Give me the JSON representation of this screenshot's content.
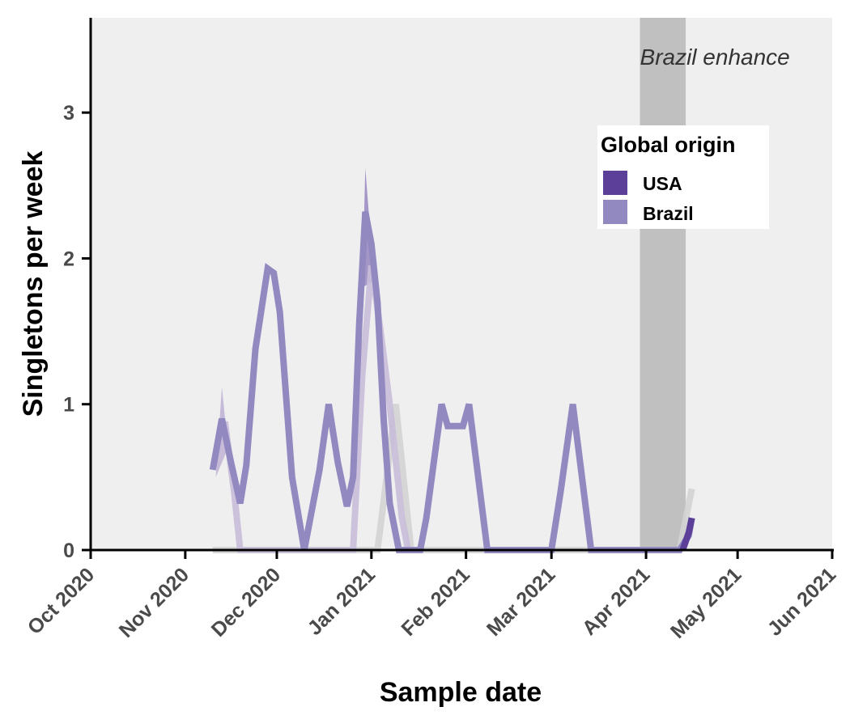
{
  "chart_data": {
    "type": "line",
    "xlabel": "Sample date",
    "ylabel": "Singletons per week",
    "xlim": [
      "2020-10-01",
      "2021-06-01"
    ],
    "ylim": [
      0,
      3.65
    ],
    "x_ticks": [
      "2020-10-01",
      "2020-11-01",
      "2020-12-01",
      "2021-01-01",
      "2021-02-01",
      "2021-03-01",
      "2021-04-01",
      "2021-05-01",
      "2021-06-01"
    ],
    "x_tick_labels": [
      "Oct 2020",
      "Nov 2020",
      "Dec 2020",
      "Jan 2021",
      "Feb 2021",
      "Mar 2021",
      "Apr 2021",
      "May 2021",
      "Jun 2021"
    ],
    "y_ticks": [
      0,
      1,
      2,
      3
    ],
    "y_tick_labels": [
      "0",
      "1",
      "2",
      "3"
    ],
    "background": "#efefef",
    "grid": false,
    "shaded_region": {
      "x": [
        "2021-03-30",
        "2021-04-14"
      ],
      "color": "#c0c0c0",
      "label": "Brazil enhance"
    },
    "legend": {
      "title": "Global origin",
      "position": "top-right",
      "entries": [
        {
          "label": "USA",
          "color": "#5b3f99"
        },
        {
          "label": "Brazil",
          "color": "#9189c0"
        }
      ]
    },
    "series": [
      {
        "name": "Brazil",
        "color": "#9189c0",
        "points": [
          [
            "2020-11-10",
            0.55
          ],
          [
            "2020-11-13",
            0.9
          ],
          [
            "2020-11-16",
            0.6
          ],
          [
            "2020-11-19",
            0.32
          ],
          [
            "2020-11-21",
            0.58
          ],
          [
            "2020-11-24",
            1.38
          ],
          [
            "2020-11-28",
            1.93
          ],
          [
            "2020-11-30",
            1.9
          ],
          [
            "2020-12-02",
            1.63
          ],
          [
            "2020-12-06",
            0.5
          ],
          [
            "2020-12-08",
            0.25
          ],
          [
            "2020-12-10",
            0
          ],
          [
            "2020-12-15",
            0.55
          ],
          [
            "2020-12-18",
            1.0
          ],
          [
            "2020-12-21",
            0.6
          ],
          [
            "2020-12-24",
            0.3
          ],
          [
            "2020-12-26",
            0.5
          ],
          [
            "2020-12-28",
            1.55
          ],
          [
            "2020-12-30",
            2.32
          ],
          [
            "2021-01-01",
            2.1
          ],
          [
            "2021-01-03",
            1.7
          ],
          [
            "2021-01-05",
            0.9
          ],
          [
            "2021-01-07",
            0.32
          ],
          [
            "2021-01-10",
            0
          ],
          [
            "2021-01-17",
            0
          ],
          [
            "2021-01-19",
            0.22
          ],
          [
            "2021-01-24",
            1.0
          ],
          [
            "2021-01-26",
            0.85
          ],
          [
            "2021-01-31",
            0.85
          ],
          [
            "2021-02-02",
            1.0
          ],
          [
            "2021-02-08",
            0
          ],
          [
            "2021-03-01",
            0
          ],
          [
            "2021-03-04",
            0.4
          ],
          [
            "2021-03-08",
            1.0
          ],
          [
            "2021-03-14",
            0
          ],
          [
            "2021-04-12",
            0
          ],
          [
            "2021-04-15",
            0.1
          ],
          [
            "2021-04-16",
            0.22
          ]
        ]
      },
      {
        "name": "USA",
        "color": "#5b3f99",
        "points": [
          [
            "2021-04-13",
            0
          ],
          [
            "2021-04-15",
            0.12
          ],
          [
            "2021-04-16",
            0.22
          ]
        ]
      }
    ],
    "background_series": [
      {
        "color": "#d3d3d3",
        "points": [
          [
            "2020-11-10",
            0
          ],
          [
            "2021-01-03",
            0
          ],
          [
            "2021-01-06",
            0.5
          ],
          [
            "2021-01-09",
            1.0
          ],
          [
            "2021-01-14",
            0
          ],
          [
            "2021-04-12",
            0
          ],
          [
            "2021-04-16",
            0.42
          ]
        ]
      },
      {
        "color": "#c9bdd9",
        "points": [
          [
            "2020-11-12",
            0.6
          ],
          [
            "2020-11-14",
            0.88
          ],
          [
            "2020-11-17",
            0.4
          ],
          [
            "2020-11-19",
            0
          ],
          [
            "2020-11-21",
            0
          ],
          [
            "2020-12-26",
            0
          ],
          [
            "2020-12-29",
            1.2
          ],
          [
            "2021-01-01",
            1.95
          ],
          [
            "2021-01-04",
            1.5
          ],
          [
            "2021-01-07",
            1.0
          ],
          [
            "2021-01-11",
            0.22
          ],
          [
            "2021-01-13",
            0
          ]
        ]
      }
    ],
    "ribbons": [
      {
        "color": "#8c78bb",
        "points": [
          [
            "2020-12-29",
            1.8
          ],
          [
            "2020-12-30",
            2.62
          ],
          [
            "2020-12-31",
            2.35
          ],
          [
            "2021-01-01",
            2.05
          ],
          [
            "2021-01-02",
            1.85
          ]
        ]
      },
      {
        "color": "#b7a8d0",
        "points": [
          [
            "2020-11-11",
            0.5
          ],
          [
            "2020-11-13",
            1.12
          ],
          [
            "2020-11-15",
            0.7
          ]
        ]
      }
    ]
  }
}
